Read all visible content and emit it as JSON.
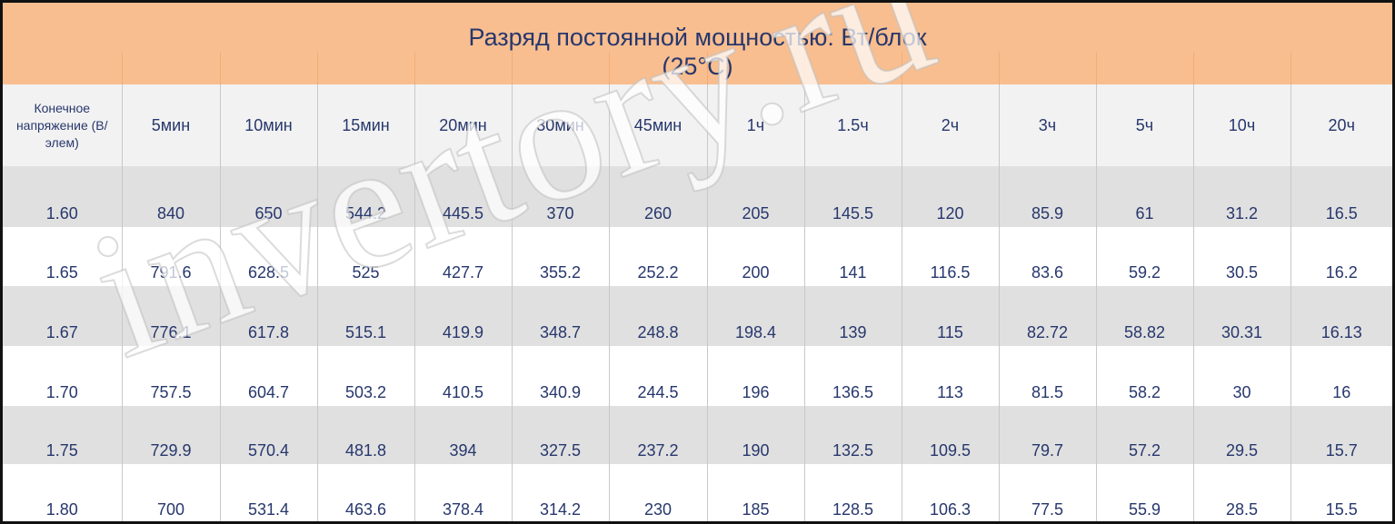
{
  "title": {
    "line1": "Разряд постоянной мощностью: Вт/блок",
    "line2": "(25°C)"
  },
  "table": {
    "corner_label": "Конечное напряжение (В/элем)",
    "columns": [
      "5мин",
      "10мин",
      "15мин",
      "20мин",
      "30мин",
      "45мин",
      "1ч",
      "1.5ч",
      "2ч",
      "3ч",
      "5ч",
      "10ч",
      "20ч"
    ],
    "rows": [
      {
        "voltage": "1.60",
        "values": [
          "840",
          "650",
          "544.2",
          "445.5",
          "370",
          "260",
          "205",
          "145.5",
          "120",
          "85.9",
          "61",
          "31.2",
          "16.5"
        ]
      },
      {
        "voltage": "1.65",
        "values": [
          "791.6",
          "628.5",
          "525",
          "427.7",
          "355.2",
          "252.2",
          "200",
          "141",
          "116.5",
          "83.6",
          "59.2",
          "30.5",
          "16.2"
        ]
      },
      {
        "voltage": "1.67",
        "values": [
          "776.1",
          "617.8",
          "515.1",
          "419.9",
          "348.7",
          "248.8",
          "198.4",
          "139",
          "115",
          "82.72",
          "58.82",
          "30.31",
          "16.13"
        ]
      },
      {
        "voltage": "1.70",
        "values": [
          "757.5",
          "604.7",
          "503.2",
          "410.5",
          "340.9",
          "244.5",
          "196",
          "136.5",
          "113",
          "81.5",
          "58.2",
          "30",
          "16"
        ]
      },
      {
        "voltage": "1.75",
        "values": [
          "729.9",
          "570.4",
          "481.8",
          "394",
          "327.5",
          "237.2",
          "190",
          "132.5",
          "109.5",
          "79.7",
          "57.2",
          "29.5",
          "15.7"
        ]
      },
      {
        "voltage": "1.80",
        "values": [
          "700",
          "531.4",
          "463.6",
          "378.4",
          "314.2",
          "230",
          "185",
          "128.5",
          "106.3",
          "77.5",
          "55.9",
          "28.5",
          "15.5"
        ]
      }
    ]
  },
  "watermark": "invertory.ru"
}
